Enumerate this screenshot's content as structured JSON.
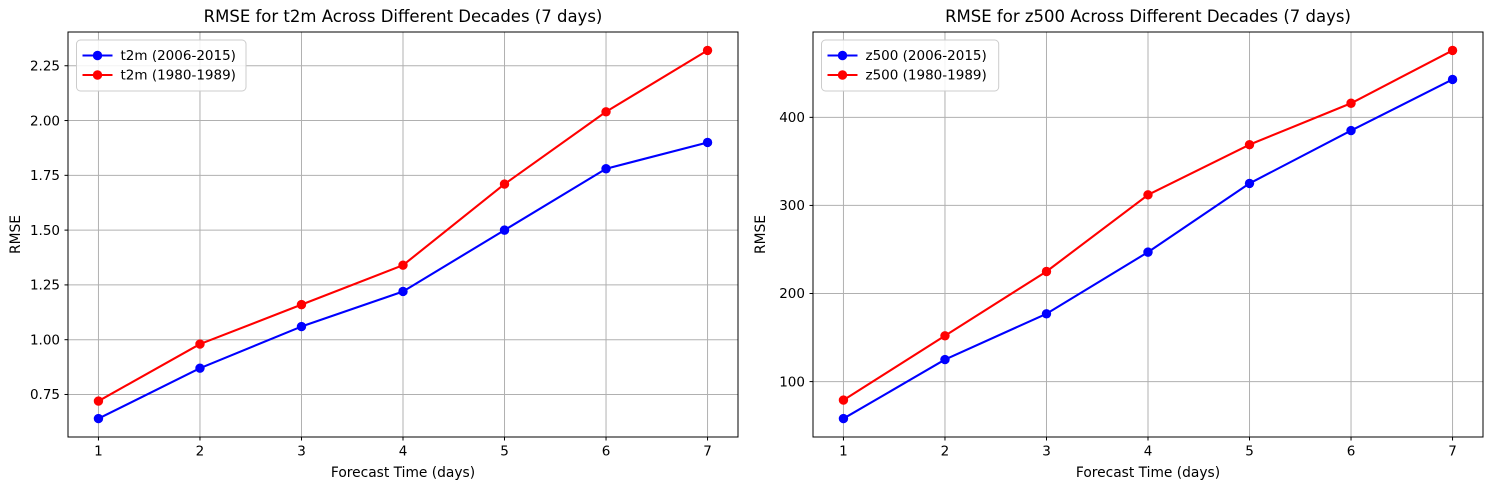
{
  "figure": {
    "background_color": "#ffffff",
    "grid_color": "#b0b0b0",
    "axis_color": "#000000",
    "text_color": "#000000",
    "series_blue": "#0000ff",
    "series_red": "#ff0000"
  },
  "chart_data": [
    {
      "id": "t2m",
      "type": "line",
      "title": "RMSE for t2m Across Different Decades (7 days)",
      "xlabel": "Forecast Time (days)",
      "ylabel": "RMSE",
      "x": [
        1,
        2,
        3,
        4,
        5,
        6,
        7
      ],
      "xtick_labels": [
        "1",
        "2",
        "3",
        "4",
        "5",
        "6",
        "7"
      ],
      "yticks": [
        0.75,
        1.0,
        1.25,
        1.5,
        1.75,
        2.0,
        2.25
      ],
      "ytick_labels": [
        "0.75",
        "1.00",
        "1.25",
        "1.50",
        "1.75",
        "2.00",
        "2.25"
      ],
      "grid": true,
      "legend_position": "upper-left",
      "series": [
        {
          "name": "t2m (2006-2015)",
          "color": "#0000ff",
          "marker": "circle",
          "values": [
            0.64,
            0.87,
            1.06,
            1.22,
            1.5,
            1.78,
            1.9
          ]
        },
        {
          "name": "t2m (1980-1989)",
          "color": "#ff0000",
          "marker": "circle",
          "values": [
            0.72,
            0.98,
            1.16,
            1.34,
            1.71,
            2.04,
            2.32
          ]
        }
      ]
    },
    {
      "id": "z500",
      "type": "line",
      "title": "RMSE for z500 Across Different Decades (7 days)",
      "xlabel": "Forecast Time (days)",
      "ylabel": "RMSE",
      "x": [
        1,
        2,
        3,
        4,
        5,
        6,
        7
      ],
      "xtick_labels": [
        "1",
        "2",
        "3",
        "4",
        "5",
        "6",
        "7"
      ],
      "yticks": [
        100,
        200,
        300,
        400
      ],
      "ytick_labels": [
        "100",
        "200",
        "300",
        "400"
      ],
      "grid": true,
      "legend_position": "upper-left",
      "series": [
        {
          "name": "z500 (2006-2015)",
          "color": "#0000ff",
          "marker": "circle",
          "values": [
            58,
            125,
            177,
            247,
            325,
            385,
            443
          ]
        },
        {
          "name": "z500 (1980-1989)",
          "color": "#ff0000",
          "marker": "circle",
          "values": [
            79,
            152,
            225,
            312,
            369,
            416,
            476
          ]
        }
      ]
    }
  ]
}
